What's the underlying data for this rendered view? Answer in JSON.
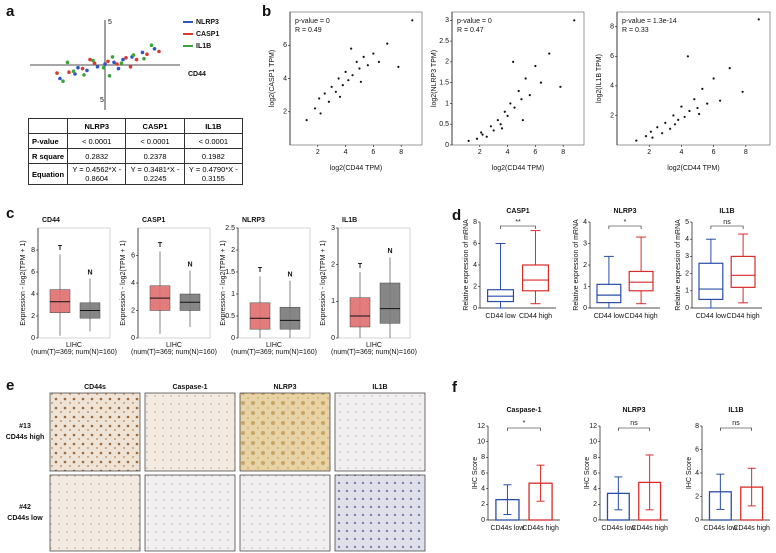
{
  "panel_a": {
    "letter": "a",
    "axis_marks": [
      "5",
      "5"
    ],
    "axis_label": "CD44",
    "xlim": [
      -5,
      5
    ],
    "ylim": [
      -5,
      5
    ],
    "series": [
      {
        "name": "NLRP3",
        "color": "#2f55c4",
        "x": [
          -3,
          -2,
          -1.2,
          -0.5,
          0,
          0.6,
          1.2,
          1.8,
          2.5,
          3.3,
          -1.8,
          0.9
        ],
        "y": [
          -1.5,
          -1,
          -0.6,
          -0.2,
          0.1,
          0.3,
          0.6,
          0.9,
          1.4,
          1.8,
          -0.3,
          -0.4
        ]
      },
      {
        "name": "CASP1",
        "color": "#d93a2f",
        "x": [
          -3.2,
          -2.4,
          -1.5,
          -0.7,
          0.2,
          0.8,
          1.4,
          2.1,
          2.8,
          3.6,
          -1,
          1.7
        ],
        "y": [
          -0.9,
          -0.8,
          -0.4,
          0.2,
          0.4,
          0.1,
          0.8,
          0.6,
          1.2,
          1.5,
          0.6,
          -0.2
        ]
      },
      {
        "name": "IL1B",
        "color": "#3aa63a",
        "x": [
          -2.8,
          -2.1,
          -1.4,
          -0.8,
          -0.1,
          0.5,
          1.1,
          1.9,
          2.6,
          3.1,
          -2.5,
          0.3
        ],
        "y": [
          -1.8,
          -0.7,
          -1.1,
          0.5,
          -0.3,
          0.9,
          0.2,
          1.1,
          0.7,
          2.2,
          0.3,
          -1.2
        ]
      }
    ],
    "table": {
      "header": [
        "NLRP3",
        "CASP1",
        "IL1B"
      ],
      "rows": [
        {
          "label": "P-value",
          "cells": [
            "< 0.0001",
            "< 0.0001",
            "< 0.0001"
          ]
        },
        {
          "label": "R square",
          "cells": [
            "0.2832",
            "0.2378",
            "0.1982"
          ]
        },
        {
          "label": "Equation",
          "cells": [
            "Y = 0.4562*X - 0.8604",
            "Y = 0.3481*X - 0.2245",
            "Y = 0.4790*X - 0.3155"
          ]
        }
      ]
    }
  },
  "panel_b": {
    "letter": "b",
    "xlabel": "log2(CD44 TPM)",
    "plots": [
      {
        "ylabel": "log2(CASP1 TPM)",
        "annotations": [
          "p-value = 0",
          "R = 0.49"
        ],
        "xlim": [
          0,
          9.5
        ],
        "ylim": [
          0,
          8
        ],
        "xticks": [
          2,
          4,
          6,
          8
        ],
        "yticks": [
          2,
          4,
          6
        ],
        "x": [
          1.2,
          1.8,
          2.1,
          2.5,
          2.8,
          3.0,
          3.3,
          3.5,
          3.8,
          4.0,
          4.2,
          4.5,
          4.8,
          5.0,
          5.3,
          5.6,
          6.0,
          6.4,
          7.0,
          7.8,
          8.8,
          2.2,
          3.6,
          4.4,
          5.1
        ],
        "y": [
          1.5,
          2.2,
          2.8,
          3.1,
          2.6,
          3.5,
          3.2,
          4.0,
          3.6,
          4.4,
          3.9,
          4.2,
          5.0,
          4.6,
          5.3,
          4.8,
          5.5,
          5.0,
          6.1,
          4.7,
          7.5,
          1.9,
          2.9,
          5.8,
          3.8
        ]
      },
      {
        "ylabel": "log2(NLRP3 TPM)",
        "annotations": [
          "p-value = 0",
          "R = 0.47"
        ],
        "xlim": [
          0,
          9.5
        ],
        "ylim": [
          0,
          3.2
        ],
        "xticks": [
          2,
          4,
          6,
          8
        ],
        "yticks": [
          0,
          0.5,
          1,
          1.5,
          2,
          2.5,
          3
        ],
        "x": [
          1.2,
          1.8,
          2.1,
          2.5,
          2.8,
          3.0,
          3.3,
          3.5,
          3.8,
          4.0,
          4.2,
          4.5,
          4.8,
          5.0,
          5.3,
          5.6,
          6.0,
          6.4,
          7.0,
          7.8,
          8.8,
          2.2,
          3.6,
          4.4,
          5.1
        ],
        "y": [
          0.1,
          0.15,
          0.3,
          0.2,
          0.45,
          0.35,
          0.6,
          0.5,
          0.8,
          0.7,
          1.0,
          0.9,
          1.3,
          1.1,
          1.6,
          1.2,
          1.9,
          1.5,
          2.2,
          1.4,
          3.0,
          0.25,
          0.4,
          2.0,
          0.6
        ]
      },
      {
        "ylabel": "log2(IL1B TPM)",
        "annotations": [
          "p-value = 1.3e-14",
          "R = 0.33"
        ],
        "xlim": [
          0,
          9.5
        ],
        "ylim": [
          0,
          9
        ],
        "xticks": [
          2,
          4,
          6,
          8
        ],
        "yticks": [
          2,
          4,
          6,
          8
        ],
        "x": [
          1.2,
          1.8,
          2.1,
          2.5,
          2.8,
          3.0,
          3.3,
          3.5,
          3.8,
          4.0,
          4.2,
          4.5,
          4.8,
          5.0,
          5.3,
          5.6,
          6.0,
          6.4,
          7.0,
          7.8,
          8.8,
          2.2,
          3.6,
          4.4,
          5.1
        ],
        "y": [
          0.3,
          0.6,
          0.9,
          1.2,
          0.8,
          1.5,
          1.1,
          2.0,
          1.7,
          2.6,
          1.9,
          2.3,
          3.1,
          2.5,
          3.8,
          2.8,
          4.5,
          3.0,
          5.2,
          3.6,
          8.5,
          0.5,
          1.4,
          6.0,
          2.1
        ]
      }
    ]
  },
  "panel_c": {
    "letter": "c",
    "ylabel": "Expression - log2(TPM + 1)",
    "xlabel": "LIHC",
    "note": "(num(T)=369; num(N)=160)",
    "plots": [
      {
        "title": "CD44",
        "ylim": [
          0,
          10
        ],
        "yticks": [
          0,
          2,
          4,
          6,
          8
        ],
        "boxes": [
          {
            "name": "T",
            "color": "#e07070",
            "low": 0.2,
            "q1": 2.3,
            "median": 3.3,
            "q3": 4.4,
            "high": 7.6
          },
          {
            "name": "N",
            "color": "#7a7a7a",
            "low": 0.6,
            "q1": 1.8,
            "median": 2.5,
            "q3": 3.2,
            "high": 5.4
          }
        ]
      },
      {
        "title": "CASP1",
        "ylim": [
          0,
          8
        ],
        "yticks": [
          0,
          2,
          4,
          6
        ],
        "boxes": [
          {
            "name": "T",
            "color": "#e07070",
            "low": 0.3,
            "q1": 2.0,
            "median": 2.9,
            "q3": 3.8,
            "high": 6.3
          },
          {
            "name": "N",
            "color": "#7a7a7a",
            "low": 0.8,
            "q1": 2.0,
            "median": 2.6,
            "q3": 3.2,
            "high": 4.9
          }
        ]
      },
      {
        "title": "NLRP3",
        "ylim": [
          0,
          2.5
        ],
        "yticks": [
          0,
          0.5,
          1,
          1.5,
          2,
          2.5
        ],
        "boxes": [
          {
            "name": "T",
            "color": "#e07070",
            "low": 0,
            "q1": 0.2,
            "median": 0.45,
            "q3": 0.8,
            "high": 1.4
          },
          {
            "name": "N",
            "color": "#7a7a7a",
            "low": 0,
            "q1": 0.2,
            "median": 0.4,
            "q3": 0.7,
            "high": 1.3
          }
        ]
      },
      {
        "title": "IL1B",
        "ylim": [
          0,
          3
        ],
        "yticks": [
          0,
          1,
          2,
          3
        ],
        "boxes": [
          {
            "name": "T",
            "color": "#e07070",
            "low": 0,
            "q1": 0.3,
            "median": 0.6,
            "q3": 1.1,
            "high": 1.8
          },
          {
            "name": "N",
            "color": "#7a7a7a",
            "low": 0,
            "q1": 0.4,
            "median": 0.8,
            "q3": 1.5,
            "high": 2.2
          }
        ]
      }
    ]
  },
  "panel_d": {
    "letter": "d",
    "ylabel": "Relative expression of mRNA",
    "categories": [
      "CD44 low",
      "CD44 high"
    ],
    "colors": [
      "#2a4da6",
      "#d92b2b"
    ],
    "plots": [
      {
        "title": "CASP1",
        "significance": "**",
        "ylim": [
          0,
          8
        ],
        "yticks": [
          0,
          2,
          4,
          6,
          8
        ],
        "boxes": [
          {
            "low": 0,
            "q1": 0.6,
            "median": 1.1,
            "q3": 1.7,
            "high": 6
          },
          {
            "low": 0.4,
            "q1": 1.6,
            "median": 2.6,
            "q3": 4,
            "high": 7.2
          }
        ]
      },
      {
        "title": "NLRP3",
        "significance": "*",
        "ylim": [
          0,
          4
        ],
        "yticks": [
          0,
          1,
          2,
          3,
          4
        ],
        "boxes": [
          {
            "low": 0,
            "q1": 0.25,
            "median": 0.6,
            "q3": 1.1,
            "high": 2.4
          },
          {
            "low": 0.2,
            "q1": 0.8,
            "median": 1.2,
            "q3": 1.7,
            "high": 3.3
          }
        ]
      },
      {
        "title": "IL1B",
        "significance": "ns",
        "ylim": [
          0,
          5
        ],
        "yticks": [
          0,
          1,
          2,
          3,
          4,
          5
        ],
        "boxes": [
          {
            "low": 0,
            "q1": 0.5,
            "median": 1.1,
            "q3": 2.6,
            "high": 4
          },
          {
            "low": 0.3,
            "q1": 1.2,
            "median": 1.9,
            "q3": 3,
            "high": 4.3
          }
        ]
      }
    ]
  },
  "panel_e": {
    "letter": "e",
    "columns": [
      "CD44s",
      "Caspase-1",
      "NLRP3",
      "IL1B"
    ],
    "rows": [
      {
        "id": "#13",
        "label": "CD44s high"
      },
      {
        "id": "#42",
        "label": "CD44s low"
      }
    ]
  },
  "panel_f": {
    "letter": "f",
    "ylabel": "IHC Score",
    "categories": [
      "CD44s low",
      "CD44s high"
    ],
    "colors": [
      "#2a4da6",
      "#d92b2b"
    ],
    "plots": [
      {
        "title": "Caspase-1",
        "significance": "*",
        "ylim": [
          0,
          12
        ],
        "yticks": [
          0,
          2,
          4,
          6,
          8,
          10,
          12
        ],
        "means": [
          2.6,
          4.7
        ],
        "errors": [
          1.9,
          2.3
        ]
      },
      {
        "title": "NLRP3",
        "significance": "ns",
        "ylim": [
          0,
          12
        ],
        "yticks": [
          0,
          2,
          4,
          6,
          8,
          10,
          12
        ],
        "means": [
          3.4,
          4.8
        ],
        "errors": [
          2.1,
          3.5
        ]
      },
      {
        "title": "IL1B",
        "significance": "ns",
        "ylim": [
          0,
          8
        ],
        "yticks": [
          0,
          2,
          4,
          6,
          8
        ],
        "means": [
          2.4,
          2.8
        ],
        "errors": [
          1.5,
          1.6
        ]
      }
    ]
  }
}
